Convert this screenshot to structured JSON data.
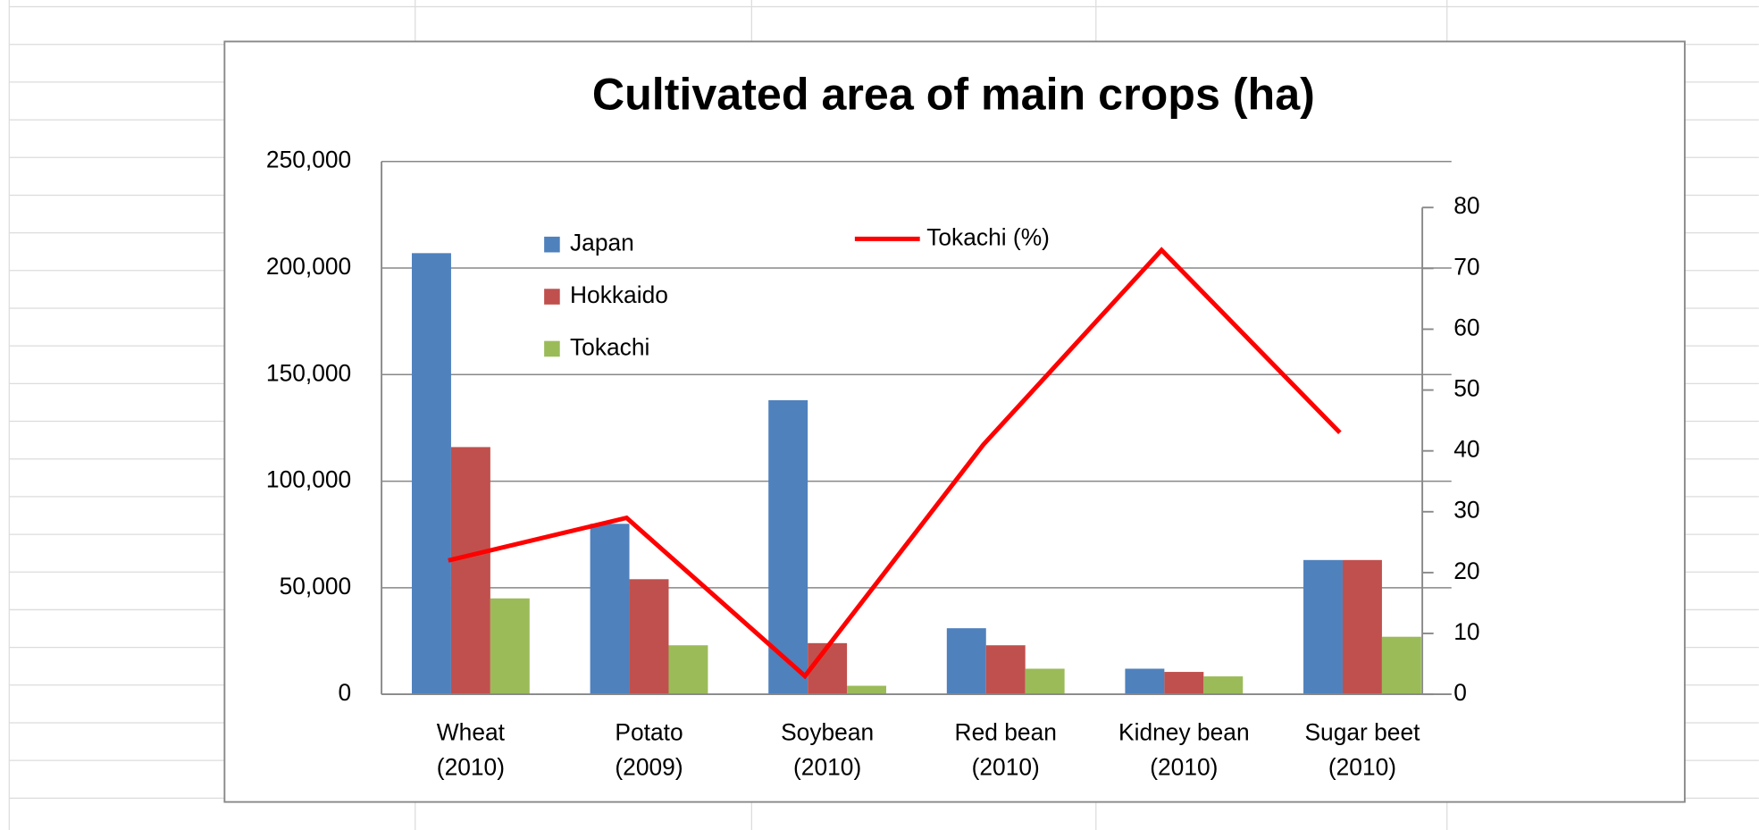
{
  "chart_data": {
    "type": "bar-line",
    "title": "Cultivated area of main crops (ha)",
    "categories": [
      "Wheat\n(2010)",
      "Potato\n(2009)",
      "Soybean\n(2010)",
      "Red bean\n(2010)",
      "Kidney bean\n(2010)",
      "Sugar beet\n(2010)"
    ],
    "series": [
      {
        "name": "Japan",
        "color": "#4f81bd",
        "type": "bar",
        "values": [
          207000,
          80000,
          138000,
          31000,
          12000,
          63000
        ]
      },
      {
        "name": "Hokkaido",
        "color": "#c0504d",
        "type": "bar",
        "values": [
          116000,
          54000,
          24000,
          23000,
          10500,
          63000
        ]
      },
      {
        "name": "Tokachi",
        "color": "#9bbb59",
        "type": "bar",
        "values": [
          45000,
          23000,
          4000,
          12000,
          8400,
          27000
        ]
      },
      {
        "name": "Tokachi (%)",
        "color": "#ff0000",
        "type": "line",
        "axis": "y2",
        "values": [
          22,
          29,
          3,
          41,
          73,
          43
        ]
      }
    ],
    "ylim": [
      0,
      250000
    ],
    "yticks": [
      {
        "value": 0,
        "label": "0"
      },
      {
        "value": 50000,
        "label": "50,000"
      },
      {
        "value": 100000,
        "label": "100,000"
      },
      {
        "value": 150000,
        "label": "150,000"
      },
      {
        "value": 200000,
        "label": "200,000"
      },
      {
        "value": 250000,
        "label": "250,000"
      }
    ],
    "y2lim": [
      0,
      80
    ],
    "y2ticks": [
      0,
      10,
      20,
      30,
      40,
      50,
      60,
      70,
      80
    ],
    "grid": true
  }
}
